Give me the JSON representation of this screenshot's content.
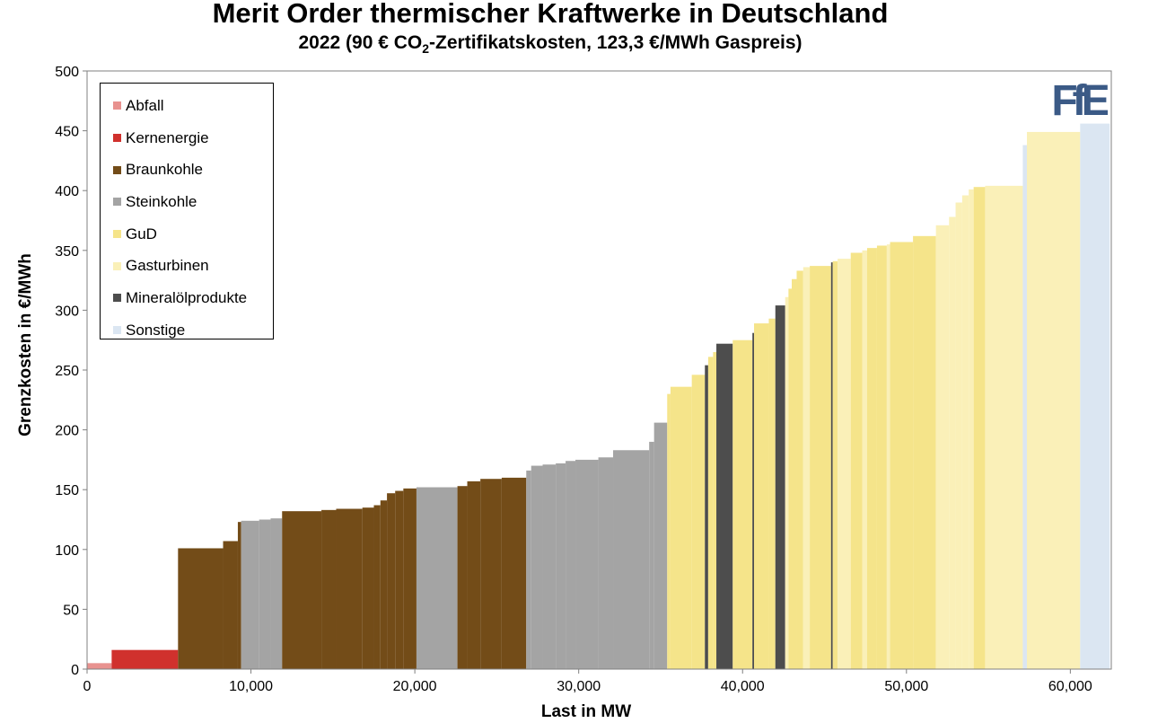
{
  "title": "Merit Order thermischer Kraftwerke in Deutschland",
  "subtitle": {
    "before": "2022 (90 € CO",
    "sub": "2",
    "after": "-Zertifikatskosten, 123,3 €/MWh Gaspreis)"
  },
  "logo_text": "FfE",
  "colors": {
    "Abfall": "#e8928f",
    "Kernenergie": "#d0312d",
    "Braunkohle": "#734c18",
    "Steinkohle": "#a4a4a4",
    "GuD": "#f5e48a",
    "Gasturbinen": "#faf0b8",
    "Mineralölprodukte": "#4d4d4d",
    "Sonstige": "#dbe6f2",
    "logo": "#3b5a86"
  },
  "legend": [
    "Abfall",
    "Kernenergie",
    "Braunkohle",
    "Steinkohle",
    "GuD",
    "Gasturbinen",
    "Mineralölprodukte",
    "Sonstige"
  ],
  "chart_data": {
    "type": "area",
    "title": "Merit Order thermischer Kraftwerke in Deutschland",
    "xlabel": "Last in MW",
    "ylabel": "Grenzkosten in €/MWh",
    "xlim": [
      0,
      62500
    ],
    "ylim": [
      0,
      500
    ],
    "xticks": [
      0,
      10000,
      20000,
      30000,
      40000,
      50000,
      60000
    ],
    "xtick_labels": [
      "0",
      "10,000",
      "20,000",
      "30,000",
      "40,000",
      "50,000",
      "60,000"
    ],
    "yticks": [
      0,
      50,
      100,
      150,
      200,
      250,
      300,
      350,
      400,
      450,
      500
    ],
    "ytick_labels": [
      "0",
      "50",
      "100",
      "150",
      "200",
      "250",
      "300",
      "350",
      "400",
      "450",
      "500"
    ],
    "grid": false,
    "legend_position": "top-left",
    "segments": [
      {
        "category": "Abfall",
        "x0": 0,
        "x1": 1500,
        "value": 5
      },
      {
        "category": "Kernenergie",
        "x0": 1500,
        "x1": 5550,
        "value": 16
      },
      {
        "category": "Braunkohle",
        "x0": 5550,
        "x1": 8300,
        "value": 101
      },
      {
        "category": "Braunkohle",
        "x0": 8300,
        "x1": 9200,
        "value": 107
      },
      {
        "category": "Braunkohle",
        "x0": 9200,
        "x1": 9400,
        "value": 123
      },
      {
        "category": "Steinkohle",
        "x0": 9400,
        "x1": 10500,
        "value": 124
      },
      {
        "category": "Steinkohle",
        "x0": 10500,
        "x1": 11200,
        "value": 125
      },
      {
        "category": "Steinkohle",
        "x0": 11200,
        "x1": 11900,
        "value": 126
      },
      {
        "category": "Braunkohle",
        "x0": 11900,
        "x1": 14300,
        "value": 132
      },
      {
        "category": "Braunkohle",
        "x0": 14300,
        "x1": 15200,
        "value": 133
      },
      {
        "category": "Braunkohle",
        "x0": 15200,
        "x1": 16800,
        "value": 134
      },
      {
        "category": "Braunkohle",
        "x0": 16800,
        "x1": 17500,
        "value": 135
      },
      {
        "category": "Braunkohle",
        "x0": 17500,
        "x1": 17900,
        "value": 137
      },
      {
        "category": "Braunkohle",
        "x0": 17900,
        "x1": 18300,
        "value": 141
      },
      {
        "category": "Braunkohle",
        "x0": 18300,
        "x1": 18800,
        "value": 147
      },
      {
        "category": "Braunkohle",
        "x0": 18800,
        "x1": 19300,
        "value": 149
      },
      {
        "category": "Braunkohle",
        "x0": 19300,
        "x1": 20100,
        "value": 151
      },
      {
        "category": "Steinkohle",
        "x0": 20100,
        "x1": 22600,
        "value": 152
      },
      {
        "category": "Braunkohle",
        "x0": 22600,
        "x1": 23200,
        "value": 153
      },
      {
        "category": "Braunkohle",
        "x0": 23200,
        "x1": 24000,
        "value": 157
      },
      {
        "category": "Braunkohle",
        "x0": 24000,
        "x1": 25300,
        "value": 159
      },
      {
        "category": "Braunkohle",
        "x0": 25300,
        "x1": 26800,
        "value": 160
      },
      {
        "category": "Steinkohle",
        "x0": 26800,
        "x1": 27100,
        "value": 166
      },
      {
        "category": "Steinkohle",
        "x0": 27100,
        "x1": 27800,
        "value": 170
      },
      {
        "category": "Steinkohle",
        "x0": 27800,
        "x1": 28600,
        "value": 171
      },
      {
        "category": "Steinkohle",
        "x0": 28600,
        "x1": 29200,
        "value": 172
      },
      {
        "category": "Steinkohle",
        "x0": 29200,
        "x1": 29800,
        "value": 174
      },
      {
        "category": "Steinkohle",
        "x0": 29800,
        "x1": 31200,
        "value": 175
      },
      {
        "category": "Steinkohle",
        "x0": 31200,
        "x1": 32100,
        "value": 177
      },
      {
        "category": "Steinkohle",
        "x0": 32100,
        "x1": 34300,
        "value": 183
      },
      {
        "category": "Steinkohle",
        "x0": 34300,
        "x1": 34600,
        "value": 190
      },
      {
        "category": "Steinkohle",
        "x0": 34600,
        "x1": 35400,
        "value": 206
      },
      {
        "category": "GuD",
        "x0": 35400,
        "x1": 35600,
        "value": 230
      },
      {
        "category": "GuD",
        "x0": 35600,
        "x1": 36900,
        "value": 236
      },
      {
        "category": "GuD",
        "x0": 36900,
        "x1": 37700,
        "value": 246
      },
      {
        "category": "Mineralölprodukte",
        "x0": 37700,
        "x1": 37900,
        "value": 254
      },
      {
        "category": "GuD",
        "x0": 37900,
        "x1": 38200,
        "value": 261
      },
      {
        "category": "GuD",
        "x0": 38200,
        "x1": 38400,
        "value": 265
      },
      {
        "category": "Mineralölprodukte",
        "x0": 38400,
        "x1": 39400,
        "value": 272
      },
      {
        "category": "GuD",
        "x0": 39400,
        "x1": 40600,
        "value": 275
      },
      {
        "category": "Mineralölprodukte",
        "x0": 40600,
        "x1": 40700,
        "value": 281
      },
      {
        "category": "GuD",
        "x0": 40700,
        "x1": 41600,
        "value": 289
      },
      {
        "category": "GuD",
        "x0": 41600,
        "x1": 42000,
        "value": 293
      },
      {
        "category": "Mineralölprodukte",
        "x0": 42000,
        "x1": 42600,
        "value": 304
      },
      {
        "category": "Gasturbinen",
        "x0": 42600,
        "x1": 42800,
        "value": 311
      },
      {
        "category": "GuD",
        "x0": 42800,
        "x1": 43000,
        "value": 318
      },
      {
        "category": "GuD",
        "x0": 43000,
        "x1": 43300,
        "value": 326
      },
      {
        "category": "GuD",
        "x0": 43300,
        "x1": 43700,
        "value": 333
      },
      {
        "category": "Gasturbinen",
        "x0": 43700,
        "x1": 44100,
        "value": 336
      },
      {
        "category": "GuD",
        "x0": 44100,
        "x1": 45400,
        "value": 337
      },
      {
        "category": "Mineralölprodukte",
        "x0": 45400,
        "x1": 45500,
        "value": 340
      },
      {
        "category": "GuD",
        "x0": 45500,
        "x1": 45800,
        "value": 341
      },
      {
        "category": "Gasturbinen",
        "x0": 45800,
        "x1": 46600,
        "value": 343
      },
      {
        "category": "GuD",
        "x0": 46600,
        "x1": 47300,
        "value": 348
      },
      {
        "category": "Gasturbinen",
        "x0": 47300,
        "x1": 47600,
        "value": 350
      },
      {
        "category": "GuD",
        "x0": 47600,
        "x1": 48200,
        "value": 352
      },
      {
        "category": "GuD",
        "x0": 48200,
        "x1": 48800,
        "value": 354
      },
      {
        "category": "Gasturbinen",
        "x0": 48800,
        "x1": 49000,
        "value": 355
      },
      {
        "category": "GuD",
        "x0": 49000,
        "x1": 50400,
        "value": 357
      },
      {
        "category": "GuD",
        "x0": 50400,
        "x1": 51800,
        "value": 362
      },
      {
        "category": "Gasturbinen",
        "x0": 51800,
        "x1": 52600,
        "value": 371
      },
      {
        "category": "Gasturbinen",
        "x0": 52600,
        "x1": 53000,
        "value": 378
      },
      {
        "category": "Gasturbinen",
        "x0": 53000,
        "x1": 53400,
        "value": 390
      },
      {
        "category": "Gasturbinen",
        "x0": 53400,
        "x1": 53800,
        "value": 396
      },
      {
        "category": "Gasturbinen",
        "x0": 53800,
        "x1": 54100,
        "value": 401
      },
      {
        "category": "GuD",
        "x0": 54100,
        "x1": 54800,
        "value": 403
      },
      {
        "category": "Gasturbinen",
        "x0": 54800,
        "x1": 57100,
        "value": 404
      },
      {
        "category": "Sonstige",
        "x0": 57100,
        "x1": 57350,
        "value": 438
      },
      {
        "category": "Gasturbinen",
        "x0": 57350,
        "x1": 60600,
        "value": 449
      },
      {
        "category": "Sonstige",
        "x0": 60600,
        "x1": 62400,
        "value": 456
      }
    ]
  }
}
